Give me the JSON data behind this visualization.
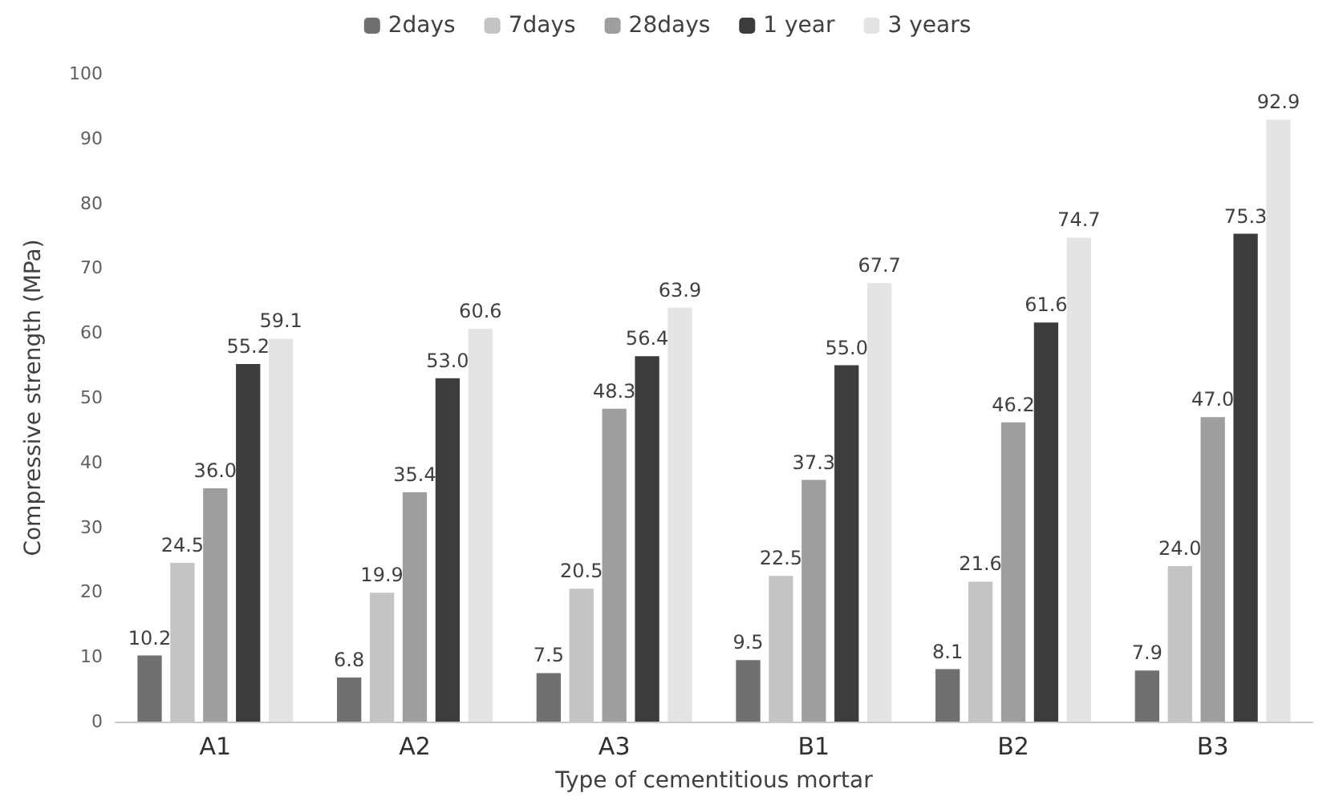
{
  "chart_data": {
    "type": "bar",
    "xlabel": "Type of cementitious mortar",
    "ylabel": "Compressive strength (MPa)",
    "categories": [
      "A1",
      "A2",
      "A3",
      "B1",
      "B2",
      "B3"
    ],
    "series": [
      {
        "name": "2days",
        "color": "#707070",
        "values": [
          10.2,
          6.8,
          7.5,
          9.5,
          8.1,
          7.9
        ],
        "value_labels": [
          "10.2",
          "6.8",
          "7.5",
          "9.5",
          "8.1",
          "7.9"
        ]
      },
      {
        "name": "7days",
        "color": "#c4c4c4",
        "values": [
          24.5,
          19.9,
          20.5,
          22.5,
          21.6,
          24.0
        ],
        "value_labels": [
          "24.5",
          "19.9",
          "20.5",
          "22.5",
          "21.6",
          "24.0"
        ]
      },
      {
        "name": "28days",
        "color": "#9e9e9e",
        "values": [
          36.0,
          35.4,
          48.3,
          37.3,
          46.2,
          47.0
        ],
        "value_labels": [
          "36.0",
          "35.4",
          "48.3",
          "37.3",
          "46.2",
          "47.0"
        ]
      },
      {
        "name": "1 year",
        "color": "#3c3c3c",
        "values": [
          55.2,
          53.0,
          56.4,
          55.0,
          61.6,
          75.3
        ],
        "value_labels": [
          "55.2",
          "53.0",
          "56.4",
          "55.0",
          "61.6",
          "75.3"
        ]
      },
      {
        "name": "3 years",
        "color": "#e4e4e4",
        "values": [
          59.1,
          60.6,
          63.9,
          67.7,
          74.7,
          92.9
        ],
        "value_labels": [
          "59.1",
          "60.6",
          "63.9",
          "67.7",
          "74.7",
          "92.9"
        ]
      }
    ],
    "ylim": [
      0,
      100
    ],
    "yticks": [
      0,
      10,
      20,
      30,
      40,
      50,
      60,
      70,
      80,
      90,
      100
    ],
    "grid": false,
    "legend": "top"
  }
}
